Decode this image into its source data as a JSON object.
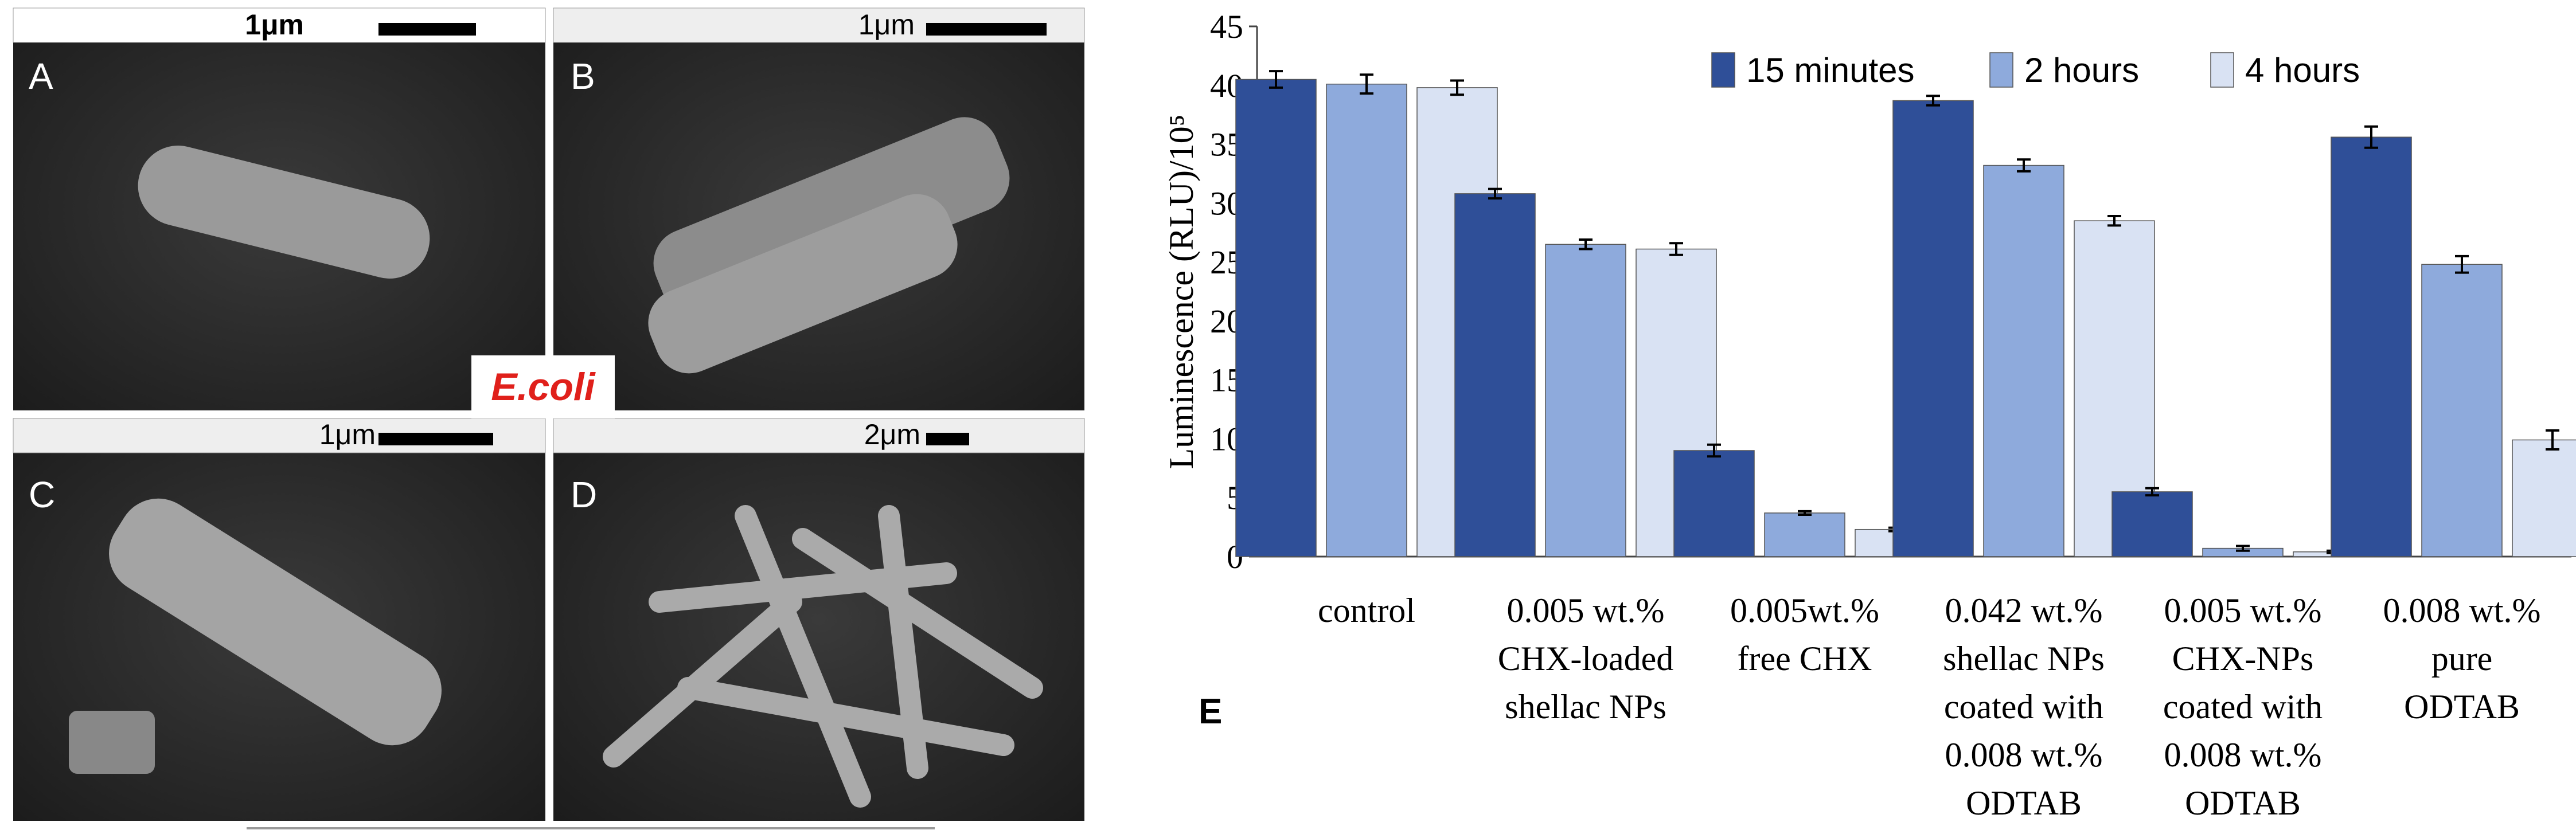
{
  "panels": [
    {
      "label": "A",
      "scale": "1μm"
    },
    {
      "label": "B",
      "scale": "1μm"
    },
    {
      "label": "C",
      "scale": "1μm"
    },
    {
      "label": "D",
      "scale": "2μm"
    }
  ],
  "organism": "E.coli",
  "chart_label": "E",
  "chart_data": {
    "type": "bar",
    "y_label": "Luminescence (RLU)/10⁵",
    "categories": [
      "control",
      "0.005 wt.%\nCHX-loaded\nshellac NPs",
      "0.005wt.%\nfree CHX",
      "0.042 wt.%\nshellac NPs\ncoated with\n0.008 wt.%\nODTAB",
      "0.005 wt.%\nCHX-NPs\ncoated with\n0.008 wt.%\nODTAB",
      "0.008 wt.%\npure\nODTAB"
    ],
    "series": [
      {
        "name": "15 minutes",
        "color": "#2f4f98",
        "values": [
          40.5,
          30.8,
          9.0,
          38.7,
          5.5,
          35.6
        ],
        "errors": [
          0.7,
          0.4,
          0.5,
          0.4,
          0.3,
          0.9
        ]
      },
      {
        "name": "2 hours",
        "color": "#8eaadc",
        "values": [
          40.1,
          26.5,
          3.7,
          33.2,
          0.7,
          24.8
        ],
        "errors": [
          0.8,
          0.4,
          0.15,
          0.5,
          0.2,
          0.7
        ]
      },
      {
        "name": "4 hours",
        "color": "#d9e2f3",
        "values": [
          39.8,
          26.1,
          2.3,
          28.5,
          0.4,
          9.9
        ],
        "errors": [
          0.6,
          0.5,
          0.15,
          0.4,
          0.1,
          0.8
        ]
      }
    ],
    "ylim": [
      0,
      45
    ],
    "yticks": [
      0,
      5,
      10,
      15,
      20,
      25,
      30,
      35,
      40,
      45
    ],
    "legend": "top"
  }
}
